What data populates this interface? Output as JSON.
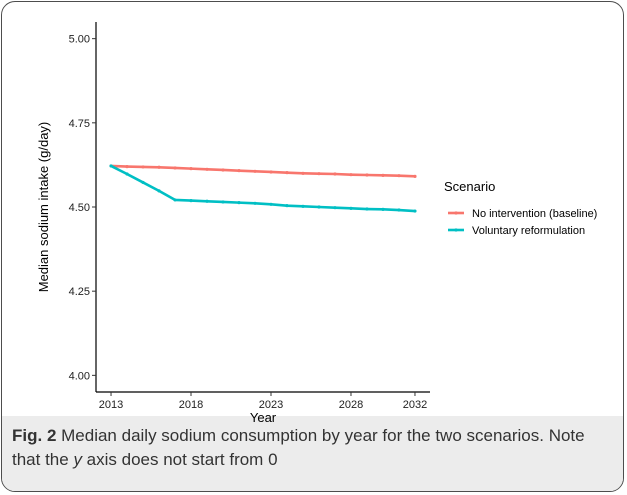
{
  "chart_data": {
    "type": "line",
    "xlabel": "Year",
    "ylabel": "Median sodium intake (g/day)",
    "xlim": [
      2013,
      2032
    ],
    "ylim": [
      4.0,
      5.0
    ],
    "x_ticks": [
      2013,
      2018,
      2023,
      2028,
      2032
    ],
    "y_ticks": [
      4.0,
      4.25,
      4.5,
      4.75,
      5.0
    ],
    "y_tick_labels": [
      "4.00",
      "4.25",
      "4.50",
      "4.75",
      "5.00"
    ],
    "grid": false,
    "legend_placement": "right",
    "legend_title": "Scenario",
    "x": [
      2013,
      2014,
      2015,
      2016,
      2017,
      2018,
      2019,
      2020,
      2021,
      2022,
      2023,
      2024,
      2025,
      2026,
      2027,
      2028,
      2029,
      2030,
      2031,
      2032
    ],
    "series": [
      {
        "name": "No intervention (baseline)",
        "color": "#F8766D",
        "values": [
          4.622,
          4.62,
          4.619,
          4.618,
          4.616,
          4.614,
          4.612,
          4.61,
          4.608,
          4.606,
          4.604,
          4.602,
          4.6,
          4.599,
          4.598,
          4.596,
          4.595,
          4.594,
          4.593,
          4.591
        ]
      },
      {
        "name": "Voluntary reformulation",
        "color": "#00BFC4",
        "values": [
          4.622,
          4.598,
          4.573,
          4.548,
          4.521,
          4.519,
          4.517,
          4.515,
          4.513,
          4.511,
          4.508,
          4.504,
          4.502,
          4.5,
          4.498,
          4.496,
          4.494,
          4.493,
          4.491,
          4.488
        ]
      }
    ]
  },
  "caption": {
    "label": "Fig. 2",
    "text_before_italic": " Median daily sodium consumption by year for the two scenarios. Note that the ",
    "italic": "y",
    "text_after_italic": " axis does not start from 0"
  }
}
